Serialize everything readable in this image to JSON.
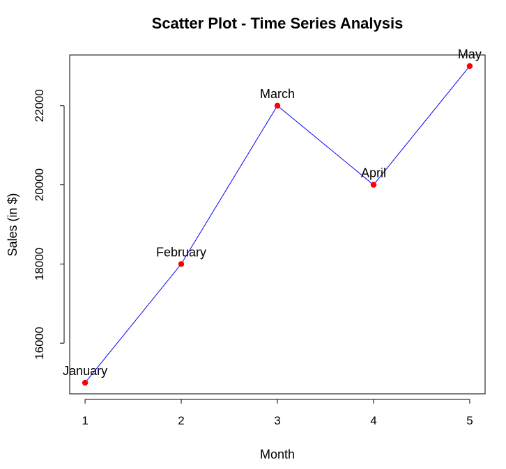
{
  "chart_data": {
    "type": "scatter",
    "title": "Scatter Plot - Time Series Analysis",
    "xlabel": "Month",
    "ylabel": "Sales (in $)",
    "x": [
      1,
      2,
      3,
      4,
      5
    ],
    "y": [
      15000,
      18000,
      22000,
      20000,
      23000
    ],
    "point_labels": [
      "January",
      "February",
      "March",
      "April",
      "May"
    ],
    "x_ticks": [
      1,
      2,
      3,
      4,
      5
    ],
    "y_ticks": [
      16000,
      18000,
      20000,
      22000
    ],
    "xlim": [
      0.84,
      5.16
    ],
    "ylim": [
      14720,
      23280
    ],
    "grid": false,
    "colors": {
      "points": "#ff0000",
      "line": "#0000ff",
      "text": "#000000",
      "axis": "#000000"
    }
  }
}
